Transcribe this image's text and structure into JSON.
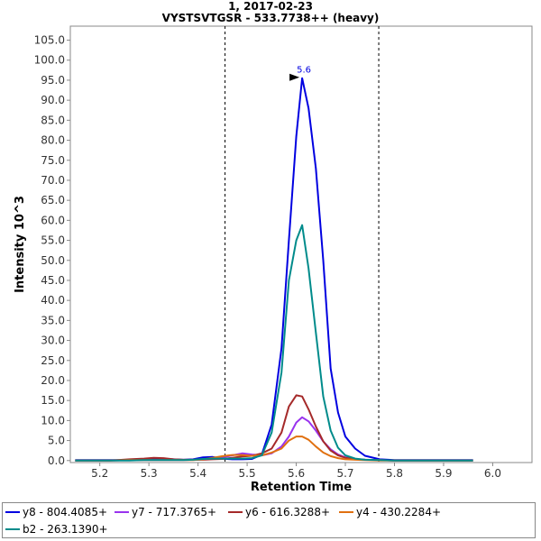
{
  "chart_data": {
    "type": "line",
    "title": "1, 2017-02-23",
    "subtitle": "VYSTSVTGSR - 533.7738++ (heavy)",
    "xlabel": "Retention Time",
    "ylabel": "Intensity 10^3",
    "xlim": [
      5.14,
      6.08
    ],
    "ylim": [
      -0.5,
      108.5
    ],
    "xticks": [
      "5.2",
      "5.3",
      "5.4",
      "5.5",
      "5.6",
      "5.7",
      "5.8",
      "5.9",
      "6.0"
    ],
    "yticks": [
      "0.0",
      "5.0",
      "10.0",
      "15.0",
      "20.0",
      "25.0",
      "30.0",
      "35.0",
      "40.0",
      "45.0",
      "50.0",
      "55.0",
      "60.0",
      "65.0",
      "70.0",
      "75.0",
      "80.0",
      "85.0",
      "90.0",
      "95.0",
      "100.0",
      "105.0"
    ],
    "grid": false,
    "legend_position": "bottom",
    "vlines": [
      5.455,
      5.768
    ],
    "peak_annotation": {
      "label": "5.6",
      "x": 5.612,
      "y": 95.5
    },
    "x": [
      5.15,
      5.18,
      5.22,
      5.26,
      5.29,
      5.31,
      5.33,
      5.35,
      5.37,
      5.39,
      5.41,
      5.43,
      5.45,
      5.47,
      5.49,
      5.51,
      5.53,
      5.55,
      5.57,
      5.585,
      5.6,
      5.612,
      5.625,
      5.64,
      5.655,
      5.67,
      5.685,
      5.7,
      5.72,
      5.74,
      5.77,
      5.8,
      5.85,
      5.9,
      5.96
    ],
    "series": [
      {
        "name": "y8 - 804.4085+",
        "color": "#0000e0",
        "values": [
          0.1,
          0.1,
          0.1,
          0.1,
          0.2,
          0.3,
          0.4,
          0.3,
          0.2,
          0.3,
          0.8,
          0.9,
          0.5,
          0.3,
          0.3,
          0.4,
          1.5,
          9.0,
          28.0,
          55.0,
          81.0,
          95.5,
          88.0,
          73.0,
          50.0,
          23.0,
          12.0,
          6.0,
          3.0,
          1.2,
          0.3,
          0.1,
          0.1,
          0.1,
          0.1
        ]
      },
      {
        "name": "y7 - 717.3765+",
        "color": "#9933ee",
        "values": [
          0.0,
          0.0,
          0.0,
          0.1,
          0.1,
          0.1,
          0.1,
          0.1,
          0.1,
          0.2,
          0.3,
          0.5,
          0.8,
          1.3,
          1.8,
          1.5,
          1.3,
          1.8,
          3.5,
          6.0,
          9.5,
          10.8,
          9.8,
          7.5,
          4.8,
          2.8,
          1.5,
          0.8,
          0.4,
          0.2,
          0.1,
          0.0,
          0.0,
          0.0,
          0.0
        ]
      },
      {
        "name": "y6 - 616.3288+",
        "color": "#a52a2a",
        "values": [
          0.0,
          0.0,
          0.0,
          0.3,
          0.5,
          0.7,
          0.6,
          0.3,
          0.2,
          0.2,
          0.2,
          0.3,
          0.4,
          0.7,
          1.0,
          1.2,
          1.8,
          3.0,
          7.0,
          13.5,
          16.3,
          16.0,
          12.8,
          8.5,
          4.8,
          2.5,
          1.3,
          0.7,
          0.3,
          0.2,
          0.1,
          0.0,
          0.0,
          0.0,
          0.0
        ]
      },
      {
        "name": "y4 - 430.2284+",
        "color": "#e07010",
        "values": [
          0.0,
          0.0,
          0.0,
          0.1,
          0.1,
          0.1,
          0.1,
          0.1,
          0.1,
          0.1,
          0.3,
          0.7,
          1.1,
          1.4,
          1.4,
          1.2,
          1.3,
          2.0,
          3.0,
          5.0,
          6.0,
          6.0,
          5.2,
          3.5,
          2.0,
          1.1,
          0.6,
          0.3,
          0.2,
          0.1,
          0.0,
          0.0,
          0.0,
          0.0,
          0.0
        ]
      },
      {
        "name": "b2 - 263.1390+",
        "color": "#008b8b",
        "values": [
          0.0,
          0.0,
          0.0,
          0.0,
          0.1,
          0.1,
          0.1,
          0.1,
          0.1,
          0.2,
          0.4,
          0.5,
          0.5,
          0.5,
          0.5,
          0.6,
          1.3,
          7.0,
          22.0,
          45.0,
          55.0,
          58.8,
          48.0,
          32.0,
          16.0,
          7.5,
          3.2,
          1.3,
          0.5,
          0.2,
          0.1,
          0.0,
          0.0,
          0.0,
          0.0
        ]
      }
    ]
  }
}
